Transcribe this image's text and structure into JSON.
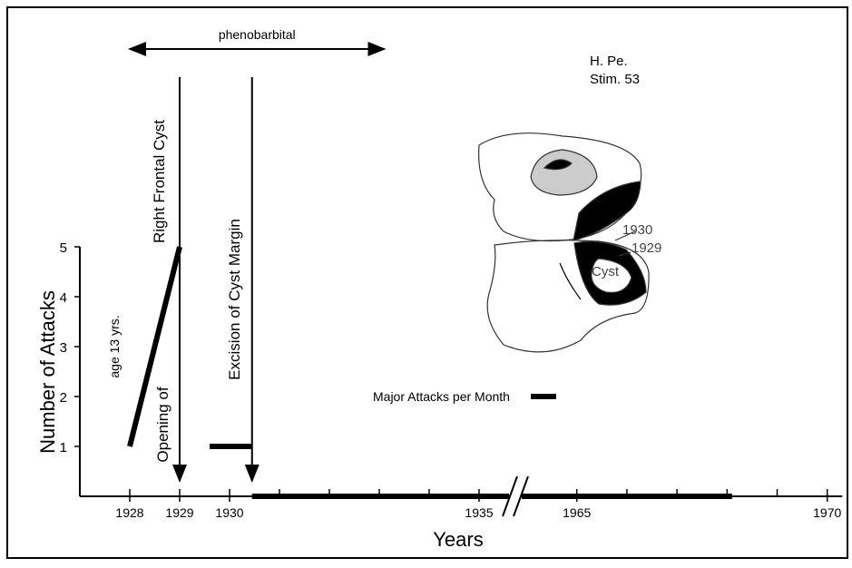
{
  "chart_data": {
    "type": "line",
    "x_label": "Years",
    "y_label": "Number of Attacks",
    "xlim": [
      1927,
      1970.3
    ],
    "xbreak": [
      1935.6,
      1963.9
    ],
    "xticks": [
      1928,
      1929,
      1930,
      1935,
      1965,
      1970
    ],
    "xminorticks": [
      1931,
      1932,
      1933,
      1934,
      1966,
      1967,
      1968,
      1969
    ],
    "ylim": [
      0,
      5
    ],
    "yticks": [
      1,
      2,
      3,
      4,
      5
    ],
    "series": [
      {
        "name": "Major Attacks per Month",
        "color": "#000000",
        "x": [
          1928,
          1929,
          null,
          1929.6,
          1930.45,
          null,
          1930.45,
          1935.6,
          null,
          1963.9,
          1968.1
        ],
        "values": [
          1,
          5,
          null,
          1,
          1,
          null,
          0,
          0,
          null,
          0,
          0
        ]
      }
    ],
    "annotations": [
      {
        "text": "phenobarbital",
        "x_from": 1928,
        "x_to": 1933.1
      },
      {
        "text": "Right Frontal Cyst",
        "x": 1929
      },
      {
        "text": "Opening of",
        "x": 1929
      },
      {
        "text": "Excision of Cyst Margin",
        "x": 1930.45
      },
      {
        "text": "age 13 yrs."
      }
    ],
    "inset": {
      "lines": [
        "H. Pe.",
        "Stim. 53"
      ],
      "labels": [
        "1930",
        "1929",
        "Cyst"
      ]
    }
  }
}
